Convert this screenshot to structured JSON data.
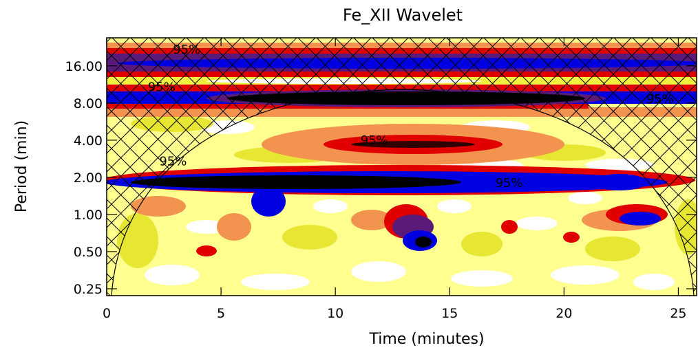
{
  "chart_data": {
    "type": "wavelet",
    "title": "Fe_XII Wavelet",
    "x_label": "Time (minutes)",
    "y_label": "Period (min)",
    "xlim": [
      0,
      25.8
    ],
    "xticks": [
      0,
      5,
      10,
      15,
      20,
      25
    ],
    "ylim": [
      0.22,
      27
    ],
    "yscale": "log",
    "yticks": [
      {
        "value": 0.25,
        "label": "0.25"
      },
      {
        "value": 0.5,
        "label": "0.50"
      },
      {
        "value": 1,
        "label": "1.00"
      },
      {
        "value": 2,
        "label": "2.00"
      },
      {
        "value": 4,
        "label": "4.00"
      },
      {
        "value": 8,
        "label": "8.00"
      },
      {
        "value": 16,
        "label": "16.00"
      }
    ],
    "annotations": [
      {
        "text": "95%",
        "x": 3.5,
        "y": 21.7
      },
      {
        "text": "95%",
        "x": 2.4,
        "y": 10.8
      },
      {
        "text": "95%",
        "x": 24.2,
        "y": 8.6
      },
      {
        "text": "95%",
        "x": 11.7,
        "y": 4
      },
      {
        "text": "95%",
        "x": 2.9,
        "y": 2.7
      },
      {
        "text": "95%",
        "x": 17.6,
        "y": 1.8
      }
    ]
  }
}
